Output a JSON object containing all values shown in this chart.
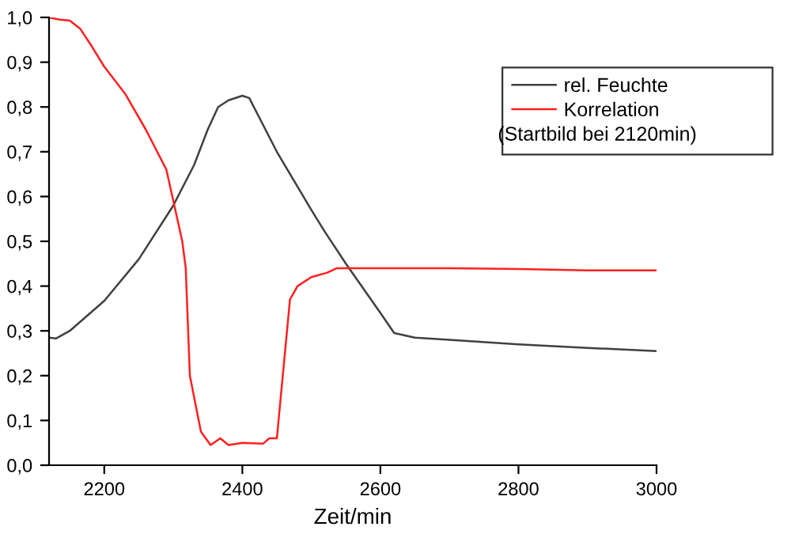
{
  "chart_data": {
    "type": "line",
    "xlabel": "Zeit/min",
    "xlim": [
      2120,
      3000
    ],
    "xticks": [
      2200,
      2400,
      2600,
      2800,
      3000
    ],
    "ylim": [
      0,
      1
    ],
    "yticks": [
      {
        "value": 0,
        "label": "0,0"
      },
      {
        "value": 0.1,
        "label": "0,1"
      },
      {
        "value": 0.2,
        "label": "0,2"
      },
      {
        "value": 0.3,
        "label": "0,3"
      },
      {
        "value": 0.4,
        "label": "0,4"
      },
      {
        "value": 0.5,
        "label": "0,5"
      },
      {
        "value": 0.6,
        "label": "0,6"
      },
      {
        "value": 0.7,
        "label": "0,7"
      },
      {
        "value": 0.8,
        "label": "0,8"
      },
      {
        "value": 0.9,
        "label": "0,9"
      },
      {
        "value": 1,
        "label": "1,0"
      }
    ],
    "grid": false,
    "legend": "top right",
    "marker": "none",
    "line_style": "solid",
    "annotations": [
      "(Startbild bei 2120min)"
    ],
    "series": [
      {
        "name": "rel. Feuchte",
        "color": "#404040",
        "x": [
          2120,
          2130,
          2150,
          2200,
          2250,
          2300,
          2330,
          2350,
          2365,
          2380,
          2400,
          2410,
          2450,
          2500,
          2520,
          2550,
          2600,
          2620,
          2650,
          2700,
          2800,
          2900,
          3000
        ],
        "values": [
          0.285,
          0.283,
          0.3,
          0.367,
          0.46,
          0.58,
          0.67,
          0.75,
          0.8,
          0.815,
          0.825,
          0.82,
          0.7,
          0.57,
          0.52,
          0.45,
          0.34,
          0.295,
          0.285,
          0.28,
          0.27,
          0.262,
          0.255
        ]
      },
      {
        "name": "Korrelation",
        "color": "#ff2020",
        "x": [
          2120,
          2135,
          2150,
          2165,
          2180,
          2200,
          2230,
          2260,
          2290,
          2313,
          2318,
          2324,
          2340,
          2354,
          2368,
          2380,
          2400,
          2430,
          2439,
          2450,
          2469,
          2480,
          2500,
          2523,
          2537,
          2600,
          2700,
          2800,
          2900,
          3000
        ],
        "values": [
          1.0,
          0.995,
          0.993,
          0.975,
          0.94,
          0.89,
          0.83,
          0.75,
          0.66,
          0.5,
          0.44,
          0.2,
          0.075,
          0.045,
          0.06,
          0.045,
          0.05,
          0.048,
          0.06,
          0.06,
          0.37,
          0.4,
          0.42,
          0.43,
          0.44,
          0.44,
          0.44,
          0.438,
          0.435,
          0.435
        ]
      }
    ]
  }
}
